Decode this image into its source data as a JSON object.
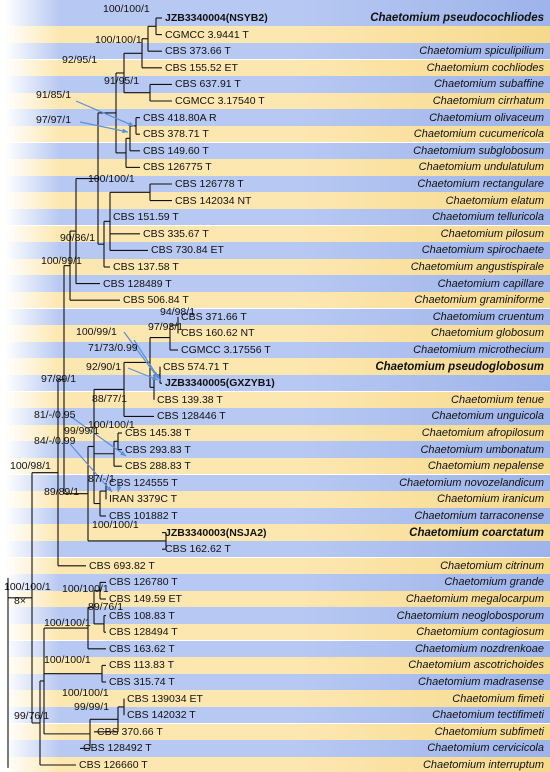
{
  "colors": {
    "band_yellow": "#fde7b0",
    "band_blue": "#b7c8f2",
    "band_blue_dark": "#9db3ea",
    "line": "#111111",
    "arrow": "#5b8fd8"
  },
  "taxa": [
    {
      "strain": "JZB3340004(NSYB2)",
      "species": "Chaetomium pseudocochliodes",
      "bold": true
    },
    {
      "strain": "CGMCC 3.9441 T",
      "species": "",
      "bold": false
    },
    {
      "strain": "CBS 373.66 T",
      "species": "Chaetomium spiculipilium",
      "bold": false
    },
    {
      "strain": "CBS 155.52 ET",
      "species": "Chaetomium cochliodes",
      "bold": false
    },
    {
      "strain": "CBS 637.91 T",
      "species": "Chaetomium subaffine",
      "bold": false
    },
    {
      "strain": "CGMCC 3.17540 T",
      "species": "Chaetomium cirrhatum",
      "bold": false
    },
    {
      "strain": "CBS 418.80A R",
      "species": "Chaetomium olivaceum",
      "bold": false
    },
    {
      "strain": "CBS 378.71 T",
      "species": "Chaetomium cucumericola",
      "bold": false
    },
    {
      "strain": "CBS 149.60 T",
      "species": "Chaetomium subglobosum",
      "bold": false
    },
    {
      "strain": "CBS 126775 T",
      "species": "Chaetomium undulatulum",
      "bold": false
    },
    {
      "strain": "CBS 126778 T",
      "species": "Chaetomium rectangulare",
      "bold": false
    },
    {
      "strain": "CBS 142034 NT",
      "species": "Chaetomium elatum",
      "bold": false
    },
    {
      "strain": "CBS 151.59 T",
      "species": "Chaetomium telluricola",
      "bold": false
    },
    {
      "strain": "CBS 335.67 T",
      "species": "Chaetomium pilosum",
      "bold": false
    },
    {
      "strain": "CBS 730.84 ET",
      "species": "Chaetomium spirochaete",
      "bold": false
    },
    {
      "strain": "CBS 137.58 T",
      "species": "Chaetomium angustispirale",
      "bold": false
    },
    {
      "strain": "CBS 128489 T",
      "species": "Chaetomium capillare",
      "bold": false
    },
    {
      "strain": "CBS 506.84 T",
      "species": "Chaetomium graminiforme",
      "bold": false
    },
    {
      "strain": "CBS 371.66 T",
      "species": "Chaetomium cruentum",
      "bold": false
    },
    {
      "strain": "CBS 160.62 NT",
      "species": "Chaetomium globosum",
      "bold": false
    },
    {
      "strain": "CGMCC 3.17556 T",
      "species": "Chaetomium microthecium",
      "bold": false
    },
    {
      "strain": "CBS 574.71 T",
      "species": "Chaetomium pseudoglobosum",
      "bold": false
    },
    {
      "strain": "JZB3340005(GXZYB1)",
      "species": "",
      "bold": true
    },
    {
      "strain": "CBS 139.38 T",
      "species": "Chaetomium tenue",
      "bold": false
    },
    {
      "strain": "CBS 128446 T",
      "species": "Chaetomium unguicola",
      "bold": false
    },
    {
      "strain": "CBS 145.38 T",
      "species": "Chaetomium afropilosum",
      "bold": false
    },
    {
      "strain": "CBS 293.83 T",
      "species": "Chaetomium umbonatum",
      "bold": false
    },
    {
      "strain": "CBS 288.83 T",
      "species": "Chaetomium nepalense",
      "bold": false
    },
    {
      "strain": "CBS 124555 T",
      "species": "Chaetomium novozelandicum",
      "bold": false
    },
    {
      "strain": "IRAN 3379C T",
      "species": "Chaetomium iranicum",
      "bold": false
    },
    {
      "strain": "CBS 101882 T",
      "species": "Chaetomium tarraconense",
      "bold": false
    },
    {
      "strain": "JZB3340003(NSJA2)",
      "species": "Chaetomium coarctatum",
      "bold": true
    },
    {
      "strain": "CBS 162.62 T",
      "species": "",
      "bold": false
    },
    {
      "strain": "CBS 693.82 T",
      "species": "Chaetomium citrinum",
      "bold": false
    },
    {
      "strain": "CBS 126780 T",
      "species": "Chaetomium grande",
      "bold": false
    },
    {
      "strain": "CBS 149.59 ET",
      "species": "Chaetomium megalocarpum",
      "bold": false
    },
    {
      "strain": "CBS 108.83 T",
      "species": "Chaetomium neoglobosporum",
      "bold": false
    },
    {
      "strain": "CBS 128494 T",
      "species": "Chaetomium contagiosum",
      "bold": false
    },
    {
      "strain": "CBS 163.62 T",
      "species": "Chaetomium nozdrenkoae",
      "bold": false
    },
    {
      "strain": "CBS 113.83 T",
      "species": "Chaetomium ascotrichoides",
      "bold": false
    },
    {
      "strain": "CBS 315.74 T",
      "species": "Chaetomium madrasense",
      "bold": false
    },
    {
      "strain": "CBS 139034 ET",
      "species": "Chaetomium fimeti",
      "bold": false
    },
    {
      "strain": "CBS 142032 T",
      "species": "Chaetomium tectifimeti",
      "bold": false
    },
    {
      "strain": "CBS 370.66 T",
      "species": "Chaetomium subfimeti",
      "bold": false
    },
    {
      "strain": "CBS 128492 T",
      "species": "Chaetomium cervicicola",
      "bold": false
    },
    {
      "strain": "CBS 126660 T",
      "species": "Chaetomium interruptum",
      "bold": false
    }
  ],
  "support_values": [
    "100/100/1",
    "100/100/1",
    "92/95/1",
    "91/95/1",
    "91/85/1",
    "97/97/1",
    "100/100/1",
    "90/86/1",
    "100/99/1",
    "94/98/1",
    "97/93/1",
    "100/99/1",
    "71/73/0.99",
    "92/90/1",
    "97/89/1",
    "88/77/1",
    "81/-/0.95",
    "100/100/1",
    "84/-/0.99",
    "99/99/1",
    "100/98/1",
    "87/-/1",
    "89/89/1",
    "100/100/1",
    "100/100/1",
    "89/76/1",
    "100/100/1",
    "100/100/1",
    "100/100/1",
    "99/99/1",
    "99/76/1"
  ],
  "scale": {
    "break_label": "8×"
  }
}
